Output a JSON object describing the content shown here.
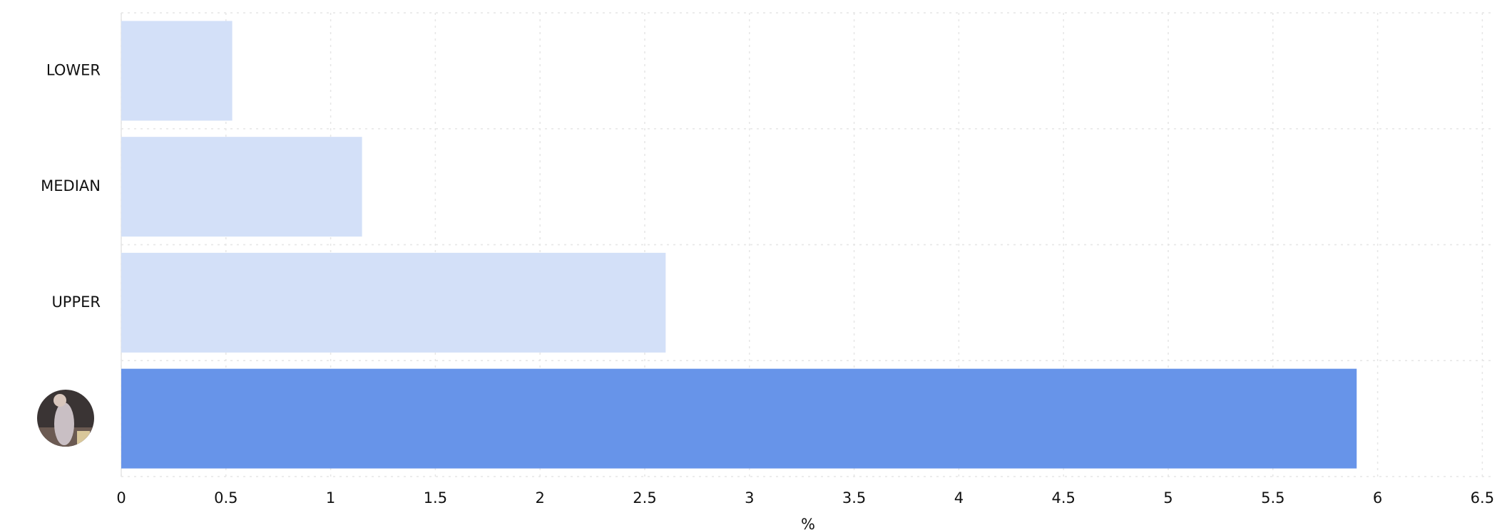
{
  "chart_data": {
    "type": "barh",
    "x_label": "%",
    "categories": [
      "LOWER",
      "MEDIAN",
      "UPPER",
      null
    ],
    "values": [
      0.53,
      1.15,
      2.6,
      5.9
    ],
    "colors": [
      "#d3e0f8",
      "#d3e0f8",
      "#d3e0f8",
      "#6794e9"
    ],
    "xlim": [
      0,
      6.56
    ],
    "xticks": [
      0,
      0.5,
      1,
      1.5,
      2,
      2.5,
      3,
      3.5,
      4,
      4.5,
      5,
      5.5,
      6,
      6.5
    ],
    "grid": true
  }
}
